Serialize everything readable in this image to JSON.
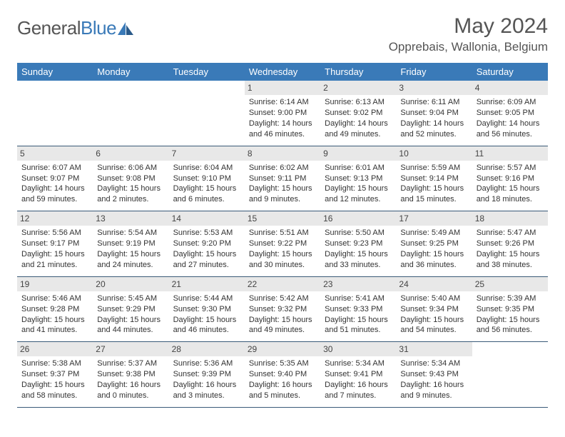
{
  "brand": {
    "part1": "General",
    "part2": "Blue"
  },
  "title": "May 2024",
  "location": "Opprebais, Wallonia, Belgium",
  "colors": {
    "header_bg": "#3a7ab8",
    "header_text": "#ffffff",
    "daynum_bg": "#e8e8e8",
    "rule": "#3a5a78",
    "text": "#333333"
  },
  "typography": {
    "body_font": "Arial",
    "cell_fontsize": 11,
    "title_fontsize": 30
  },
  "weekdays": [
    "Sunday",
    "Monday",
    "Tuesday",
    "Wednesday",
    "Thursday",
    "Friday",
    "Saturday"
  ],
  "weeks": [
    [
      null,
      null,
      null,
      {
        "n": "1",
        "sr": "Sunrise: 6:14 AM",
        "ss": "Sunset: 9:00 PM",
        "d1": "Daylight: 14 hours",
        "d2": "and 46 minutes."
      },
      {
        "n": "2",
        "sr": "Sunrise: 6:13 AM",
        "ss": "Sunset: 9:02 PM",
        "d1": "Daylight: 14 hours",
        "d2": "and 49 minutes."
      },
      {
        "n": "3",
        "sr": "Sunrise: 6:11 AM",
        "ss": "Sunset: 9:04 PM",
        "d1": "Daylight: 14 hours",
        "d2": "and 52 minutes."
      },
      {
        "n": "4",
        "sr": "Sunrise: 6:09 AM",
        "ss": "Sunset: 9:05 PM",
        "d1": "Daylight: 14 hours",
        "d2": "and 56 minutes."
      }
    ],
    [
      {
        "n": "5",
        "sr": "Sunrise: 6:07 AM",
        "ss": "Sunset: 9:07 PM",
        "d1": "Daylight: 14 hours",
        "d2": "and 59 minutes."
      },
      {
        "n": "6",
        "sr": "Sunrise: 6:06 AM",
        "ss": "Sunset: 9:08 PM",
        "d1": "Daylight: 15 hours",
        "d2": "and 2 minutes."
      },
      {
        "n": "7",
        "sr": "Sunrise: 6:04 AM",
        "ss": "Sunset: 9:10 PM",
        "d1": "Daylight: 15 hours",
        "d2": "and 6 minutes."
      },
      {
        "n": "8",
        "sr": "Sunrise: 6:02 AM",
        "ss": "Sunset: 9:11 PM",
        "d1": "Daylight: 15 hours",
        "d2": "and 9 minutes."
      },
      {
        "n": "9",
        "sr": "Sunrise: 6:01 AM",
        "ss": "Sunset: 9:13 PM",
        "d1": "Daylight: 15 hours",
        "d2": "and 12 minutes."
      },
      {
        "n": "10",
        "sr": "Sunrise: 5:59 AM",
        "ss": "Sunset: 9:14 PM",
        "d1": "Daylight: 15 hours",
        "d2": "and 15 minutes."
      },
      {
        "n": "11",
        "sr": "Sunrise: 5:57 AM",
        "ss": "Sunset: 9:16 PM",
        "d1": "Daylight: 15 hours",
        "d2": "and 18 minutes."
      }
    ],
    [
      {
        "n": "12",
        "sr": "Sunrise: 5:56 AM",
        "ss": "Sunset: 9:17 PM",
        "d1": "Daylight: 15 hours",
        "d2": "and 21 minutes."
      },
      {
        "n": "13",
        "sr": "Sunrise: 5:54 AM",
        "ss": "Sunset: 9:19 PM",
        "d1": "Daylight: 15 hours",
        "d2": "and 24 minutes."
      },
      {
        "n": "14",
        "sr": "Sunrise: 5:53 AM",
        "ss": "Sunset: 9:20 PM",
        "d1": "Daylight: 15 hours",
        "d2": "and 27 minutes."
      },
      {
        "n": "15",
        "sr": "Sunrise: 5:51 AM",
        "ss": "Sunset: 9:22 PM",
        "d1": "Daylight: 15 hours",
        "d2": "and 30 minutes."
      },
      {
        "n": "16",
        "sr": "Sunrise: 5:50 AM",
        "ss": "Sunset: 9:23 PM",
        "d1": "Daylight: 15 hours",
        "d2": "and 33 minutes."
      },
      {
        "n": "17",
        "sr": "Sunrise: 5:49 AM",
        "ss": "Sunset: 9:25 PM",
        "d1": "Daylight: 15 hours",
        "d2": "and 36 minutes."
      },
      {
        "n": "18",
        "sr": "Sunrise: 5:47 AM",
        "ss": "Sunset: 9:26 PM",
        "d1": "Daylight: 15 hours",
        "d2": "and 38 minutes."
      }
    ],
    [
      {
        "n": "19",
        "sr": "Sunrise: 5:46 AM",
        "ss": "Sunset: 9:28 PM",
        "d1": "Daylight: 15 hours",
        "d2": "and 41 minutes."
      },
      {
        "n": "20",
        "sr": "Sunrise: 5:45 AM",
        "ss": "Sunset: 9:29 PM",
        "d1": "Daylight: 15 hours",
        "d2": "and 44 minutes."
      },
      {
        "n": "21",
        "sr": "Sunrise: 5:44 AM",
        "ss": "Sunset: 9:30 PM",
        "d1": "Daylight: 15 hours",
        "d2": "and 46 minutes."
      },
      {
        "n": "22",
        "sr": "Sunrise: 5:42 AM",
        "ss": "Sunset: 9:32 PM",
        "d1": "Daylight: 15 hours",
        "d2": "and 49 minutes."
      },
      {
        "n": "23",
        "sr": "Sunrise: 5:41 AM",
        "ss": "Sunset: 9:33 PM",
        "d1": "Daylight: 15 hours",
        "d2": "and 51 minutes."
      },
      {
        "n": "24",
        "sr": "Sunrise: 5:40 AM",
        "ss": "Sunset: 9:34 PM",
        "d1": "Daylight: 15 hours",
        "d2": "and 54 minutes."
      },
      {
        "n": "25",
        "sr": "Sunrise: 5:39 AM",
        "ss": "Sunset: 9:35 PM",
        "d1": "Daylight: 15 hours",
        "d2": "and 56 minutes."
      }
    ],
    [
      {
        "n": "26",
        "sr": "Sunrise: 5:38 AM",
        "ss": "Sunset: 9:37 PM",
        "d1": "Daylight: 15 hours",
        "d2": "and 58 minutes."
      },
      {
        "n": "27",
        "sr": "Sunrise: 5:37 AM",
        "ss": "Sunset: 9:38 PM",
        "d1": "Daylight: 16 hours",
        "d2": "and 0 minutes."
      },
      {
        "n": "28",
        "sr": "Sunrise: 5:36 AM",
        "ss": "Sunset: 9:39 PM",
        "d1": "Daylight: 16 hours",
        "d2": "and 3 minutes."
      },
      {
        "n": "29",
        "sr": "Sunrise: 5:35 AM",
        "ss": "Sunset: 9:40 PM",
        "d1": "Daylight: 16 hours",
        "d2": "and 5 minutes."
      },
      {
        "n": "30",
        "sr": "Sunrise: 5:34 AM",
        "ss": "Sunset: 9:41 PM",
        "d1": "Daylight: 16 hours",
        "d2": "and 7 minutes."
      },
      {
        "n": "31",
        "sr": "Sunrise: 5:34 AM",
        "ss": "Sunset: 9:43 PM",
        "d1": "Daylight: 16 hours",
        "d2": "and 9 minutes."
      },
      null
    ]
  ]
}
